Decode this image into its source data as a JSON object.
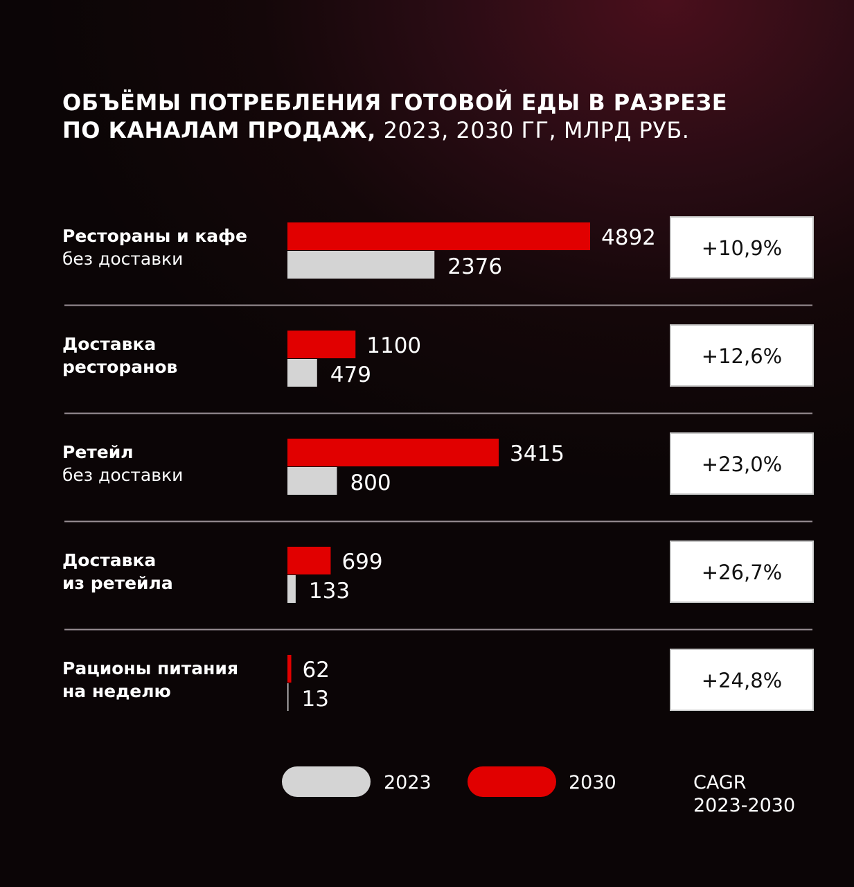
{
  "title": {
    "bold_line1": "ОБЪЁМЫ ПОТРЕБЛЕНИЯ ГОТОВОЙ ЕДЫ В РАЗРЕЗЕ",
    "bold_line2": "ПО КАНАЛАМ ПРОДАЖ,",
    "light_line2": " 2023, 2030 ГГ, МЛРД РУБ."
  },
  "colors": {
    "series_2030": "#e10000",
    "series_2023": "#d4d4d4",
    "divider": "#9a9095",
    "cagr_box_bg": "#ffffff",
    "cagr_box_border": "#c8c8c8"
  },
  "chart_data": {
    "type": "bar",
    "orientation": "horizontal",
    "categories": [
      {
        "bold": "Рестораны и кафе",
        "light": "без доставки"
      },
      {
        "bold": "Доставка",
        "bold2": "ресторанов"
      },
      {
        "bold": "Ретейл",
        "light": "без доставки"
      },
      {
        "bold": "Доставка",
        "bold2": "из ретейла"
      },
      {
        "bold": "Рационы питания",
        "bold2": "на неделю"
      }
    ],
    "series": [
      {
        "name": "2030",
        "values": [
          4892,
          1100,
          3415,
          699,
          62
        ]
      },
      {
        "name": "2023",
        "values": [
          2376,
          479,
          800,
          133,
          13
        ]
      }
    ],
    "cagr": [
      "+10,9%",
      "+12,6%",
      "+23,0%",
      "+26,7%",
      "+24,8%"
    ],
    "xlim": [
      0,
      4892
    ],
    "grid": false,
    "legend": {
      "position": "bottom",
      "items": [
        "2023",
        "2030"
      ],
      "cagr_label_line1": "CAGR",
      "cagr_label_line2": "2023-2030"
    }
  }
}
